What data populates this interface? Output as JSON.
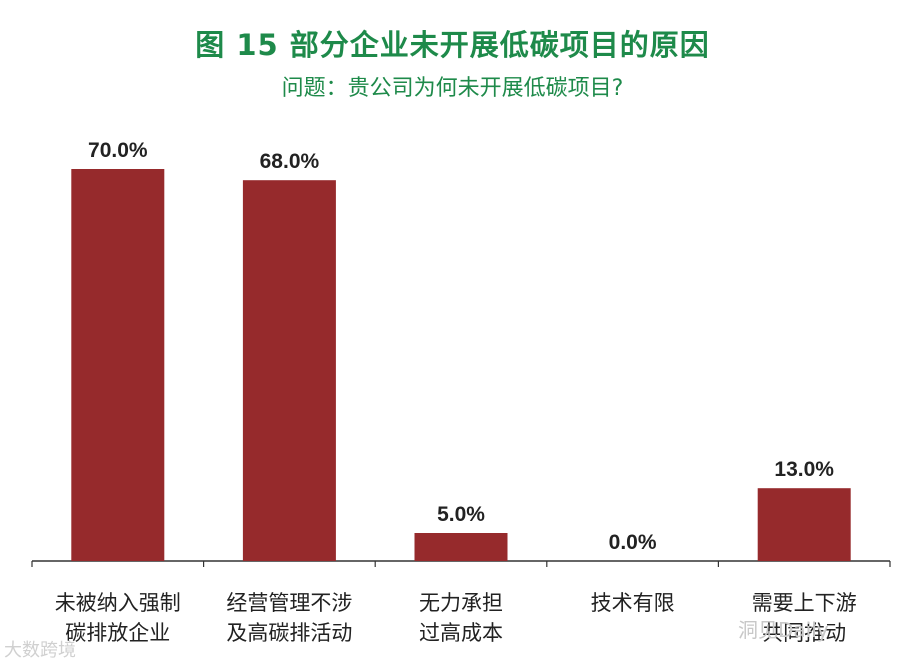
{
  "title": "图 15  部分企业未开展低碳项目的原因",
  "subtitle": "问题：贵公司为何未开展低碳项目?",
  "colors": {
    "title": "#1e8a4a",
    "bar": "#962a2c",
    "axis": "#333333",
    "text": "#222222"
  },
  "watermarks": {
    "left": "大数跨境",
    "right": "洞见Daily"
  },
  "chart_data": {
    "type": "bar",
    "categories": [
      [
        "未被纳入强制",
        "碳排放企业"
      ],
      [
        "经营管理不涉",
        "及高碳排活动"
      ],
      [
        "无力承担",
        "过高成本"
      ],
      [
        "技术有限"
      ],
      [
        "需要上下游",
        "共同推动"
      ]
    ],
    "values": [
      70.0,
      68.0,
      5.0,
      0.0,
      13.0
    ],
    "value_labels": [
      "70.0%",
      "68.0%",
      "5.0%",
      "0.0%",
      "13.0%"
    ],
    "ylim": [
      0,
      100
    ],
    "grid": false,
    "legend": "none"
  }
}
